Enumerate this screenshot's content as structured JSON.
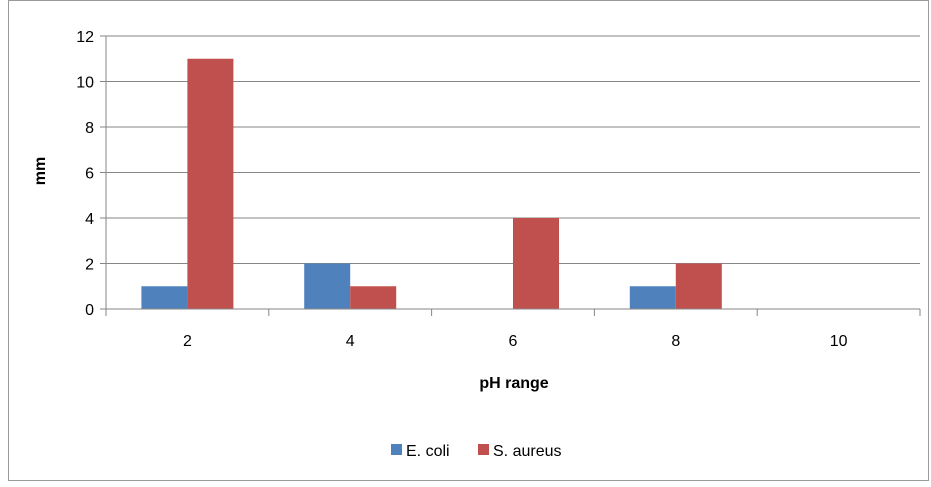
{
  "chart_data": {
    "type": "bar",
    "title": "",
    "xlabel": "pH range",
    "ylabel": "mm",
    "categories": [
      "2",
      "4",
      "6",
      "8",
      "10"
    ],
    "series": [
      {
        "name": "E. coli",
        "color": "#4f81bd",
        "values": [
          1,
          2,
          0,
          1,
          0
        ]
      },
      {
        "name": "S. aureus",
        "color": "#c0504d",
        "values": [
          11,
          1,
          4,
          2,
          0
        ]
      }
    ],
    "ylim": [
      0,
      12
    ],
    "yticks": [
      "0",
      "2",
      "4",
      "6",
      "8",
      "10",
      "12"
    ],
    "grid": true,
    "legend_position": "bottom-center"
  }
}
